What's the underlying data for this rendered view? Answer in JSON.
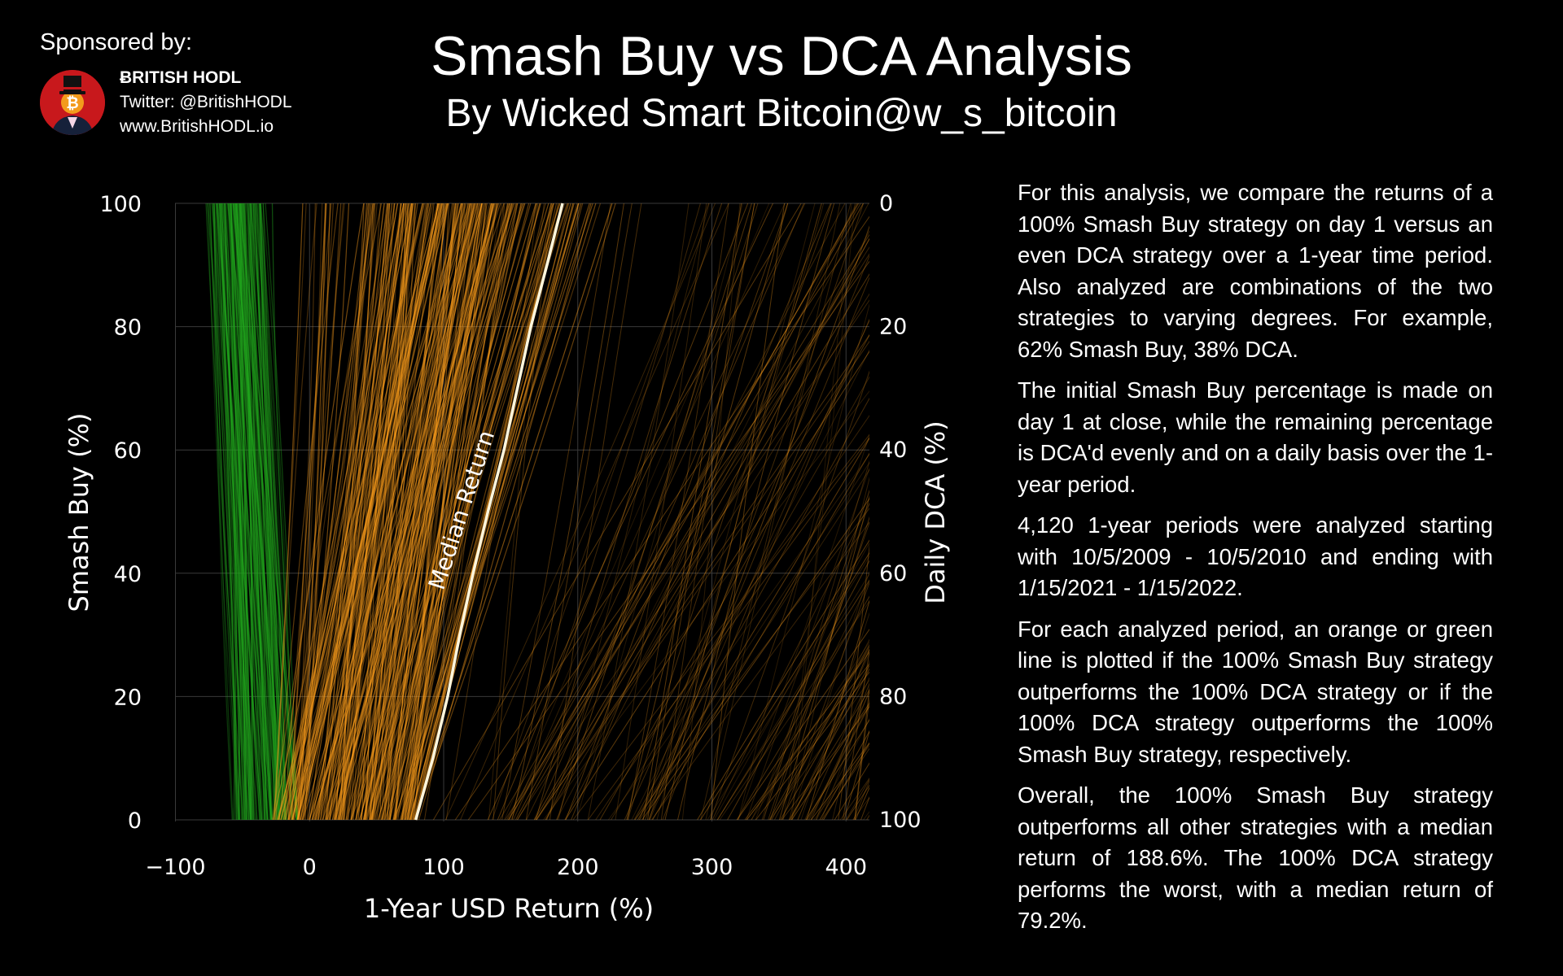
{
  "sponsor": {
    "label": "Sponsored by:",
    "brand": "ɃRITISH HODL",
    "twitter": "Twitter: @BritishHODL",
    "website": "www.BritishHODL.io",
    "logo_icon": "bitcoin-top-hat-avatar-icon"
  },
  "header": {
    "title": "Smash Buy vs DCA Analysis",
    "subtitle": "By Wicked Smart Bitcoin@w_s_bitcoin"
  },
  "chart_data": {
    "type": "line",
    "xlabel": "1-Year USD Return (%)",
    "ylabel": "Smash Buy (%)",
    "y2label": "Daily DCA (%)",
    "xlim": [
      -100,
      420
    ],
    "ylim": [
      0,
      100
    ],
    "x_ticks": [
      -100,
      0,
      100,
      200,
      300,
      400
    ],
    "x_tick_labels": [
      "−100",
      "0",
      "100",
      "200",
      "300",
      "400"
    ],
    "y_ticks": [
      0,
      20,
      40,
      60,
      80,
      100
    ],
    "y_tick_labels": [
      "0",
      "20",
      "40",
      "60",
      "80",
      "100"
    ],
    "y2_ticks": [
      100,
      80,
      60,
      40,
      20,
      0
    ],
    "y2_tick_labels": [
      "100",
      "80",
      "60",
      "40",
      "20",
      "0"
    ],
    "grid": true,
    "median_label": "Median Return",
    "median_line": {
      "smash_buy_pct": [
        0,
        10,
        20,
        30,
        40,
        50,
        60,
        70,
        80,
        90,
        100
      ],
      "return_pct": [
        79.2,
        92,
        103,
        112,
        122,
        133,
        145,
        155,
        165,
        177,
        188.6
      ]
    },
    "period_count": 4120,
    "colors": {
      "smash_buy_outperforms": "#ff9f1c",
      "dca_outperforms": "#22a81e",
      "median": "#fff6dc",
      "grid": "#3a3a3a"
    }
  },
  "description": [
    "For this analysis, we compare the returns of a 100% Smash Buy strategy on day 1 versus an even DCA strategy over a 1-year time period. Also analyzed are combinations of the two strategies to varying degrees. For example, 62% Smash Buy, 38% DCA.",
    "The initial Smash Buy percentage is made on day 1 at close, while the remaining percentage is DCA'd evenly and on a daily basis over the 1-year period.",
    "4,120 1-year periods were analyzed starting with 10/5/2009 - 10/5/2010 and ending with 1/15/2021 - 1/15/2022.",
    "For each analyzed period, an orange or green line is plotted if the 100% Smash Buy strategy outperforms the 100% DCA strategy or if the 100% DCA strategy outperforms the 100% Smash Buy strategy, respectively.",
    "Overall, the 100% Smash Buy strategy outperforms all other strategies with a median return of 188.6%. The 100% DCA strategy performs the worst, with a median return of 79.2%."
  ]
}
